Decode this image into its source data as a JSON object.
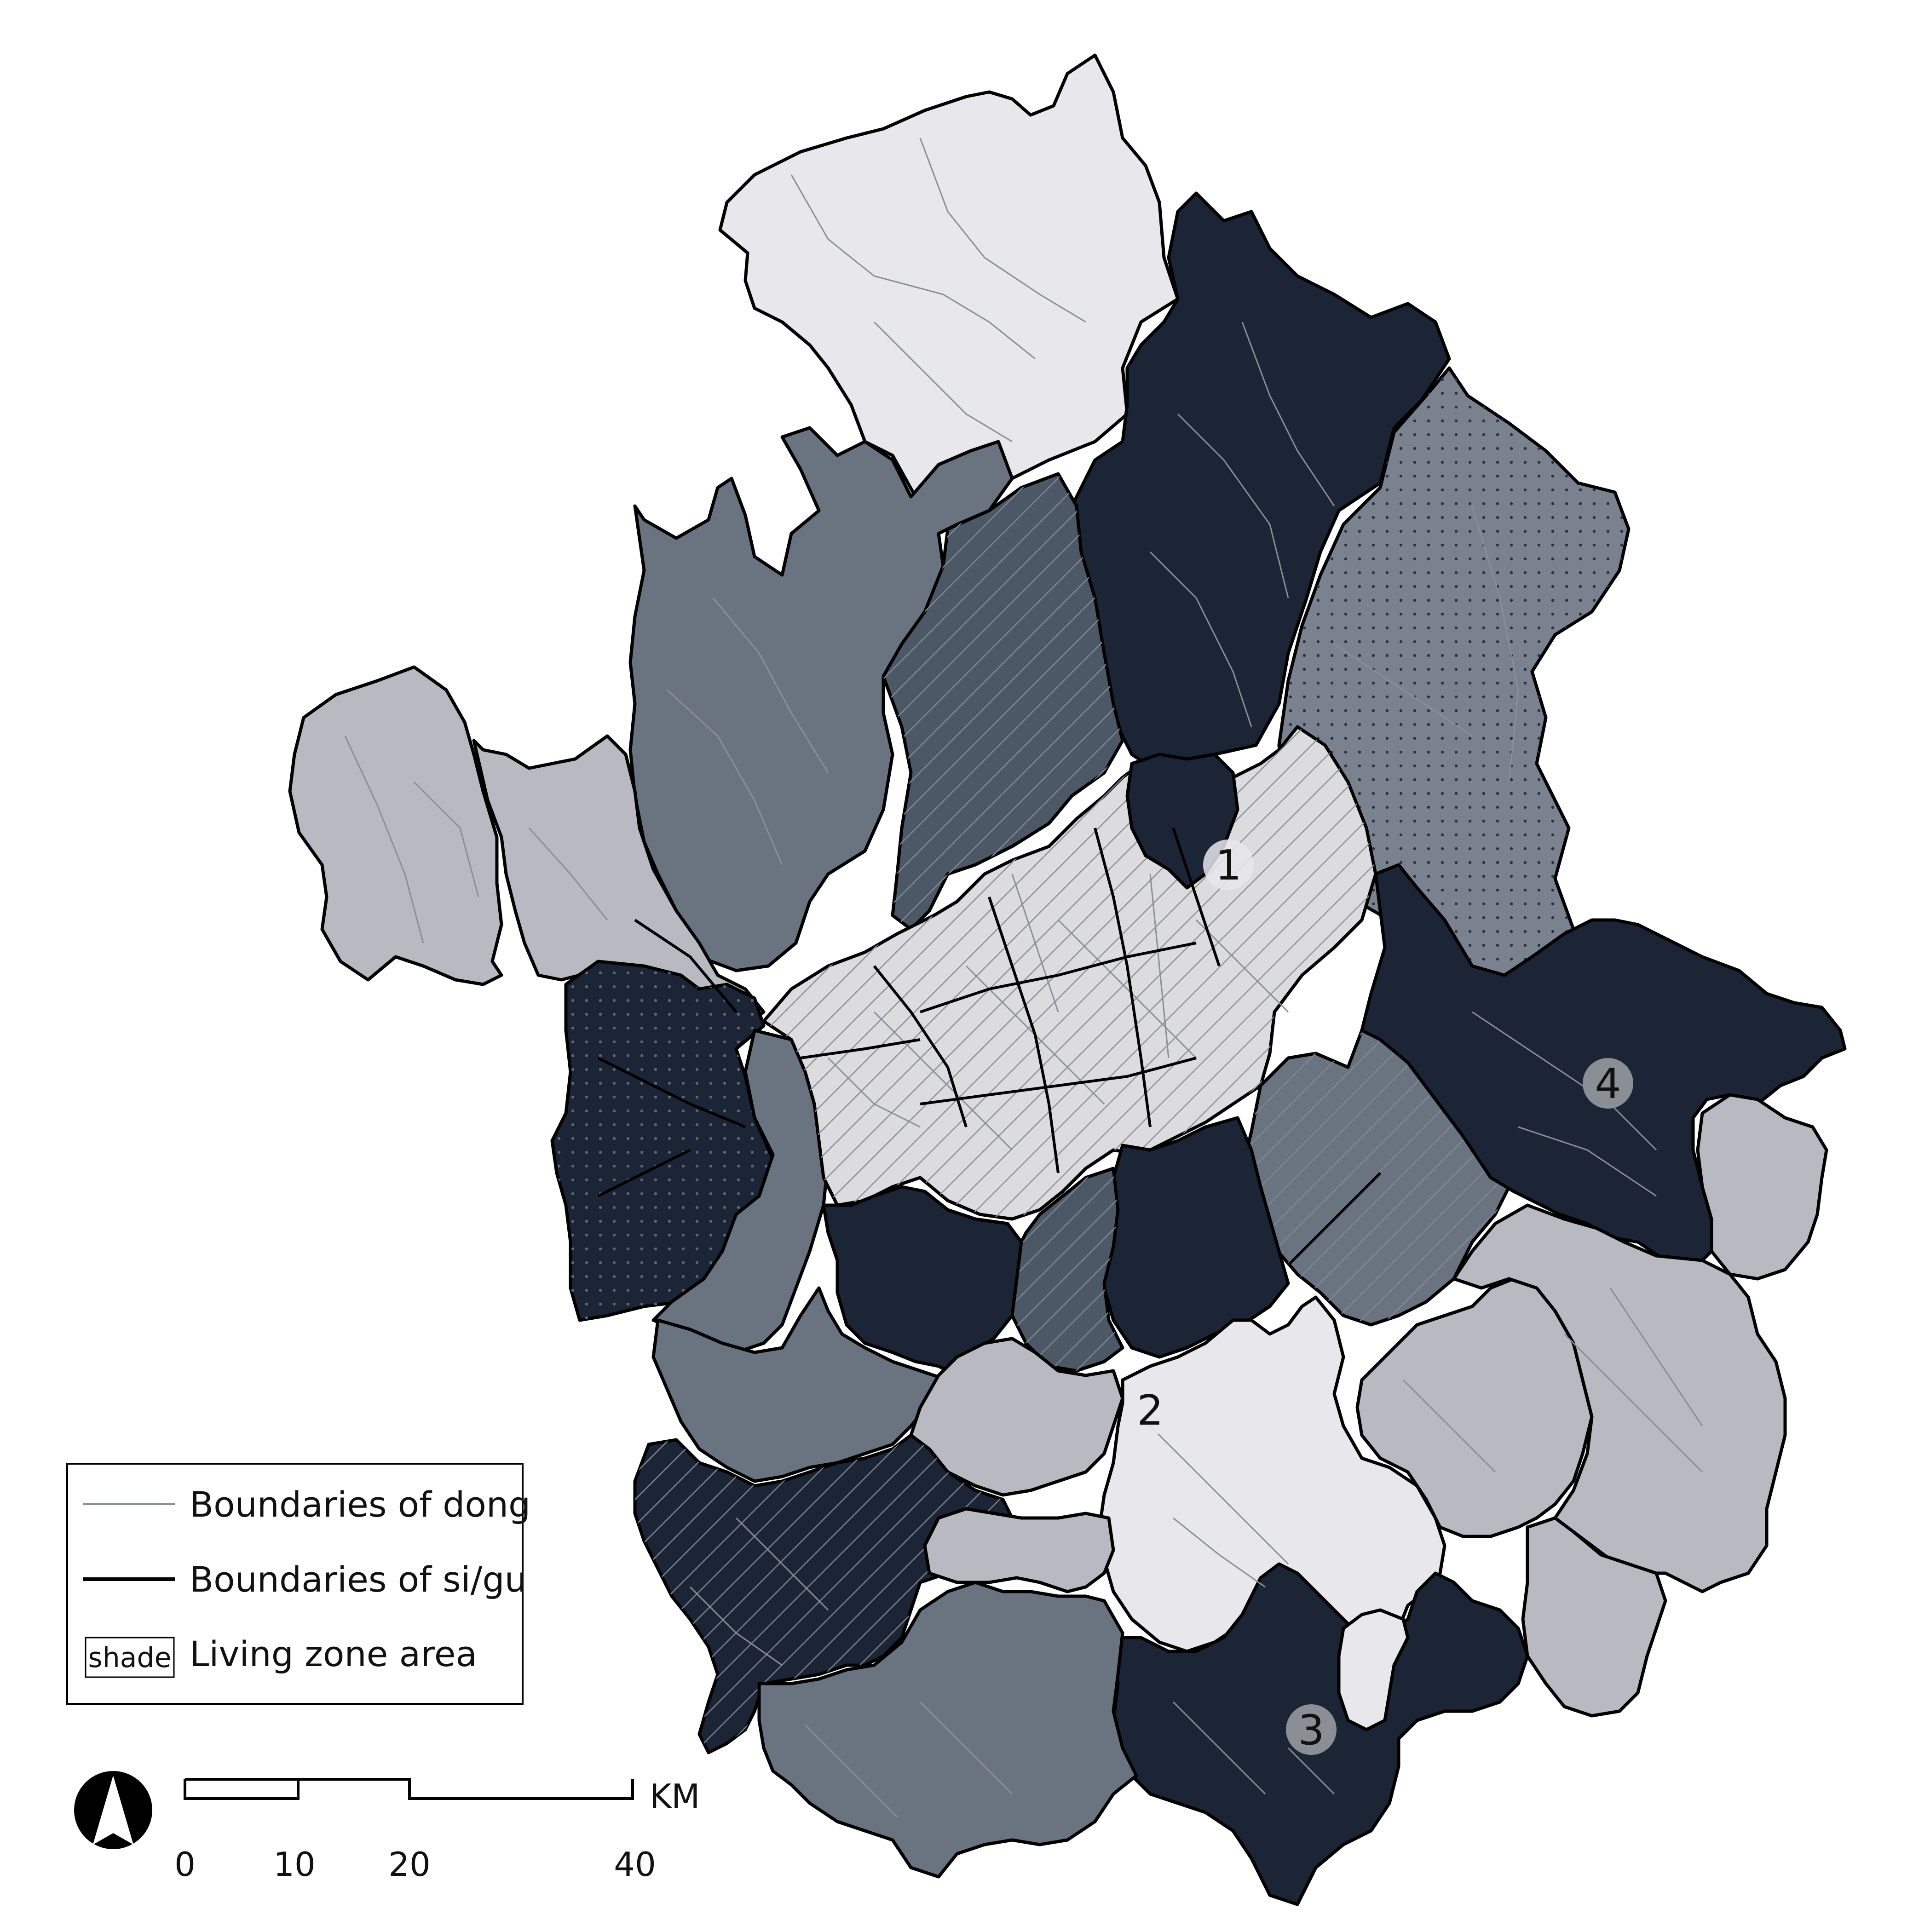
{
  "legend": {
    "dong_label": "Boundaries of dong",
    "sigu_label": "Boundaries of si/gu",
    "shade_swatch": "shade",
    "zone_label": "Living zone area"
  },
  "scale": {
    "unit": "KM",
    "ticks": [
      "0",
      "10",
      "20",
      "40"
    ]
  },
  "zones": [
    "1",
    "2",
    "3",
    "4"
  ],
  "colors": {
    "darkest": "#1c2535",
    "dark_gray": "#6a7480",
    "mid_gray": "#b9bac1",
    "light": "#e8e8ec",
    "seoul": "#dcdcde",
    "dong_line": "#8a8f96",
    "sigu_line": "#000000",
    "background": "#ffffff"
  },
  "icons": [
    "north-arrow-icon"
  ]
}
